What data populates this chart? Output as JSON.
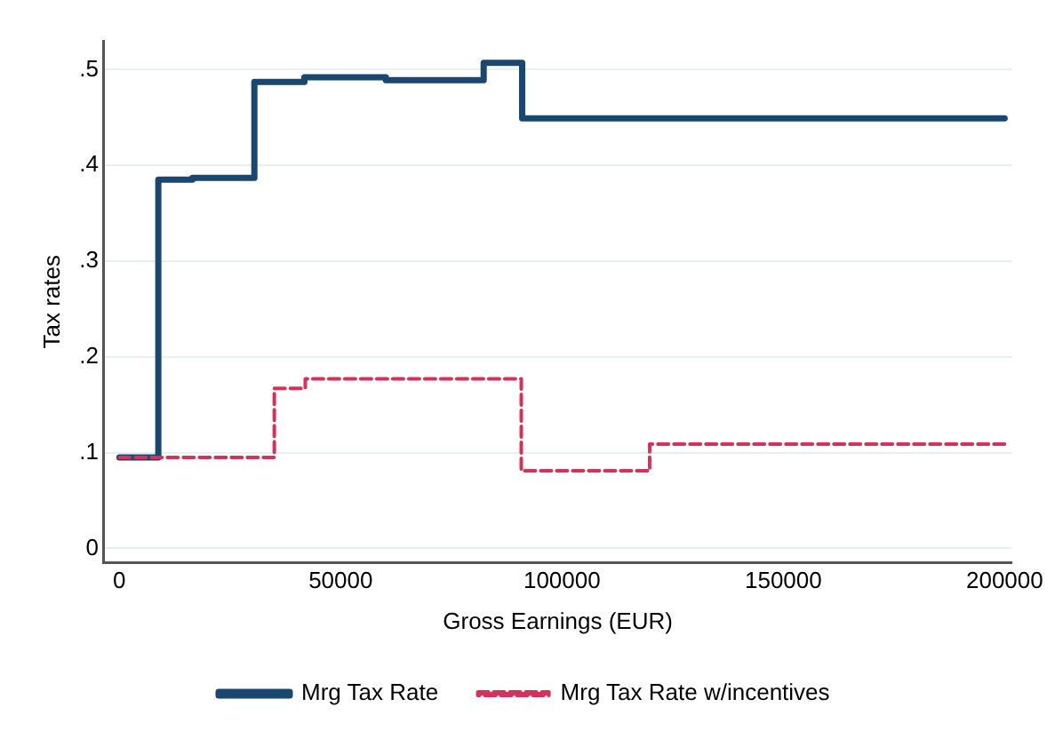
{
  "chart_data": {
    "type": "step",
    "xlabel": "Gross Earnings (EUR)",
    "ylabel": "Tax rates",
    "xlim": [
      -3500,
      201600
    ],
    "xticks": [
      0,
      50000,
      100000,
      150000,
      200000
    ],
    "ylim": [
      -0.015,
      0.53
    ],
    "yticks": [
      0,
      {
        "value": 0.1,
        "label": ".1"
      },
      {
        "value": 0.2,
        "label": ".2"
      },
      {
        "value": 0.3,
        "label": ".3"
      },
      {
        "value": 0.4,
        "label": ".4"
      },
      {
        "value": 0.5,
        "label": ".5"
      }
    ],
    "grid": "y",
    "legend": "bottom",
    "marker": "none",
    "series": [
      {
        "name": "Mrg Tax Rate",
        "color": "#1a476f",
        "line_style": "solid",
        "x": [
          0,
          8800,
          16500,
          30500,
          41800,
          60200,
          82300,
          91000,
          200000
        ],
        "values": [
          0.095,
          0.385,
          0.387,
          0.487,
          0.492,
          0.489,
          0.507,
          0.449,
          0.449
        ]
      },
      {
        "name": "Mrg Tax Rate w/incentives",
        "color": "#d6315b",
        "line_style": "dashed",
        "x": [
          0,
          35000,
          42000,
          90800,
          119800,
          200000
        ],
        "values": [
          0.095,
          0.167,
          0.177,
          0.081,
          0.109,
          0.109
        ]
      }
    ]
  }
}
